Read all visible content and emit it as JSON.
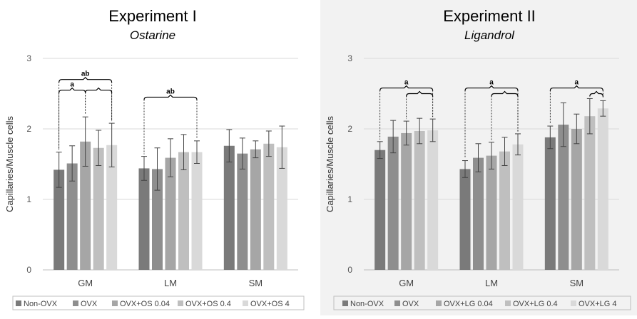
{
  "figure": {
    "y_axis_title": "Capillaries/Muscle cells",
    "categories": [
      "GM",
      "LM",
      "SM"
    ],
    "colors": [
      "#7a7a7a",
      "#8e8e8e",
      "#a6a6a6",
      "#bfbfbf",
      "#d9d9d9"
    ],
    "panel_backgrounds": [
      "#ffffff",
      "#f2f2f2"
    ]
  },
  "chart_data": [
    {
      "type": "bar",
      "title": "Experiment I",
      "subtitle": "Ostarine",
      "xlabel": "",
      "ylabel": "Capillaries/Muscle cells",
      "ylim": [
        0,
        3
      ],
      "yticks": [
        "0",
        "1",
        "2",
        "3"
      ],
      "gridlines": true,
      "legend_position": "bottom",
      "categories": [
        "GM",
        "LM",
        "SM"
      ],
      "series": [
        {
          "name": "Non-OVX",
          "values": [
            1.42,
            1.44,
            1.76
          ],
          "errors": [
            0.25,
            0.17,
            0.23
          ]
        },
        {
          "name": "OVX",
          "values": [
            1.51,
            1.43,
            1.65
          ],
          "errors": [
            0.25,
            0.3,
            0.22
          ]
        },
        {
          "name": "OVX+OS 0.04",
          "values": [
            1.82,
            1.59,
            1.71
          ],
          "errors": [
            0.35,
            0.27,
            0.12
          ]
        },
        {
          "name": "OVX+OS 0.4",
          "values": [
            1.73,
            1.67,
            1.79
          ],
          "errors": [
            0.25,
            0.25,
            0.18
          ]
        },
        {
          "name": "OVX+OS 4",
          "values": [
            1.77,
            1.67,
            1.74
          ],
          "errors": [
            0.31,
            0.16,
            0.3
          ]
        }
      ],
      "annotations": [
        {
          "label": "ab",
          "category": 0,
          "from_series": 0,
          "to_series": 4,
          "level": 2.7
        },
        {
          "label": "a",
          "category": 0,
          "from_series": 0,
          "to_series": 2,
          "level": 2.55
        },
        {
          "label": "",
          "category": 0,
          "from_series": 2,
          "to_series": 4,
          "level": 2.55
        },
        {
          "label": "ab",
          "category": 1,
          "from_series": 0,
          "to_series": 4,
          "level": 2.45
        }
      ]
    },
    {
      "type": "bar",
      "title": "Experiment II",
      "subtitle": "Ligandrol",
      "xlabel": "",
      "ylabel": "Capillaries/Muscle cells",
      "ylim": [
        0,
        3
      ],
      "yticks": [
        "0",
        "1",
        "2",
        "3"
      ],
      "gridlines": true,
      "legend_position": "bottom",
      "categories": [
        "GM",
        "LM",
        "SM"
      ],
      "series": [
        {
          "name": "Non-OVX",
          "values": [
            1.7,
            1.43,
            1.88
          ],
          "errors": [
            0.12,
            0.12,
            0.16
          ]
        },
        {
          "name": "OVX",
          "values": [
            1.89,
            1.59,
            2.06
          ],
          "errors": [
            0.23,
            0.2,
            0.31
          ]
        },
        {
          "name": "OVX+LG 0.04",
          "values": [
            1.94,
            1.62,
            2.0
          ],
          "errors": [
            0.17,
            0.19,
            0.21
          ]
        },
        {
          "name": "OVX+LG 0.4",
          "values": [
            1.97,
            1.68,
            2.18
          ],
          "errors": [
            0.18,
            0.2,
            0.25
          ]
        },
        {
          "name": "OVX+LG 4",
          "values": [
            1.98,
            1.78,
            2.29
          ],
          "errors": [
            0.16,
            0.15,
            0.11
          ]
        }
      ],
      "annotations": [
        {
          "label": "a",
          "category": 0,
          "from_series": 0,
          "to_series": 4,
          "level": 2.58
        },
        {
          "label": "",
          "category": 0,
          "from_series": 2,
          "to_series": 4,
          "level": 2.5
        },
        {
          "label": "a",
          "category": 1,
          "from_series": 0,
          "to_series": 4,
          "level": 2.58
        },
        {
          "label": "",
          "category": 1,
          "from_series": 2,
          "to_series": 4,
          "level": 2.5
        },
        {
          "label": "a",
          "category": 2,
          "from_series": 0,
          "to_series": 4,
          "level": 2.58
        },
        {
          "label": "",
          "category": 2,
          "from_series": 3,
          "to_series": 4,
          "level": 2.5
        }
      ]
    }
  ]
}
